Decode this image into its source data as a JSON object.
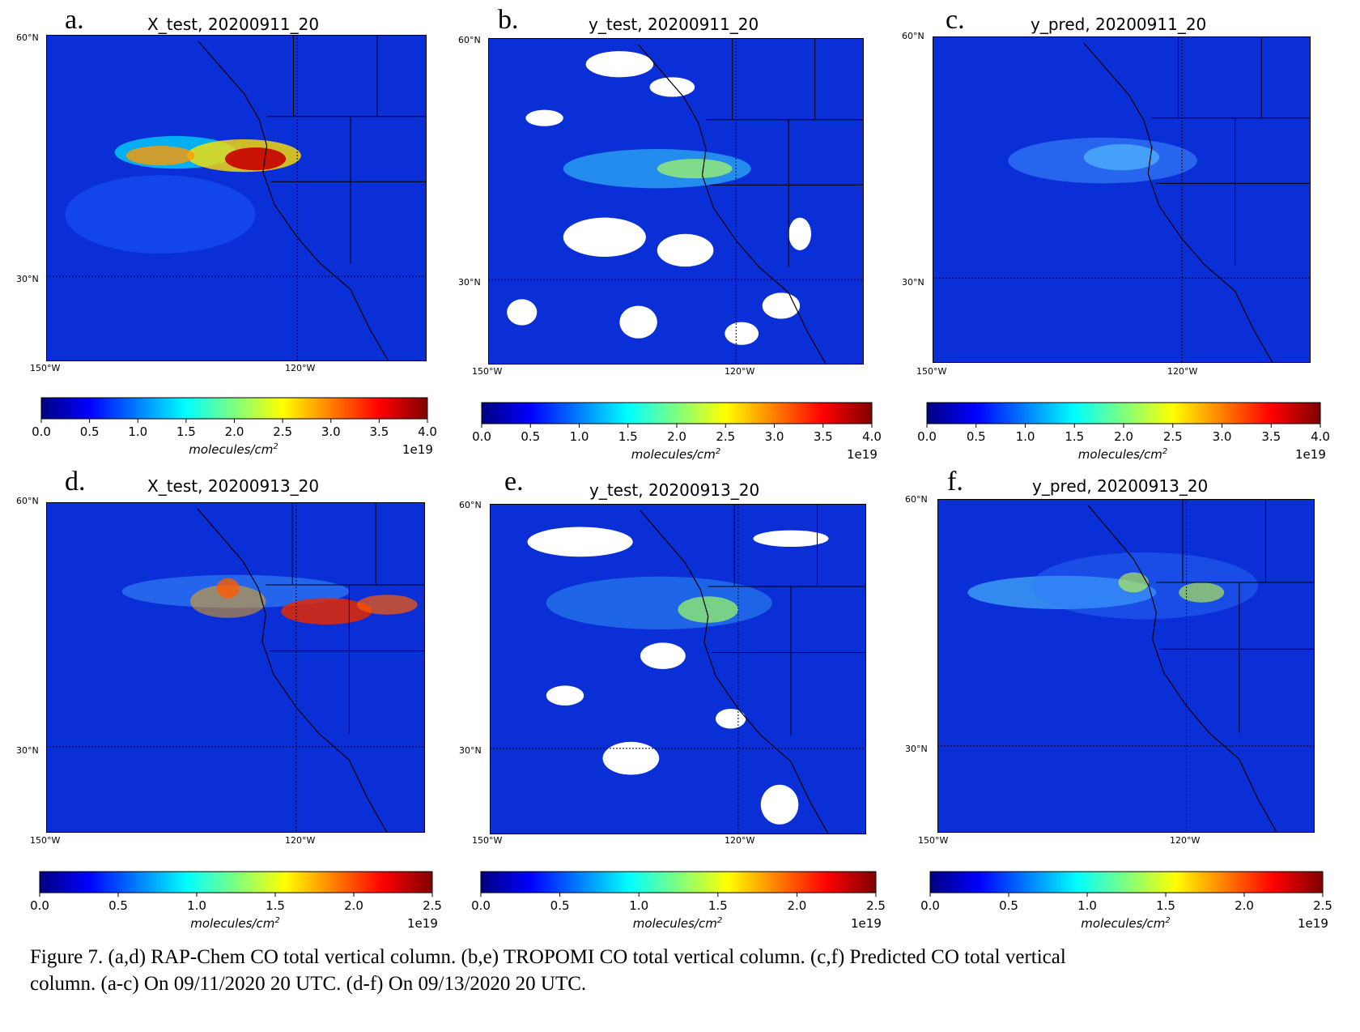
{
  "panels": [
    {
      "letter": "a.",
      "title": "X_test, 20200911_20",
      "lat_top": "60°N",
      "lat_mid": "30°N",
      "lon_left": "150°W",
      "lon_mid": "120°W",
      "field": "xtest1"
    },
    {
      "letter": "b.",
      "title": "y_test, 20200911_20",
      "lat_top": "60°N",
      "lat_mid": "30°N",
      "lon_left": "150°W",
      "lon_mid": "120°W",
      "field": "ytest1"
    },
    {
      "letter": "c.",
      "title": "y_pred, 20200911_20",
      "lat_top": "60°N",
      "lat_mid": "30°N",
      "lon_left": "150°W",
      "lon_mid": "120°W",
      "field": "ypred1"
    },
    {
      "letter": "d.",
      "title": "X_test, 20200913_20",
      "lat_top": "60°N",
      "lat_mid": "30°N",
      "lon_left": "150°W",
      "lon_mid": "120°W",
      "field": "xtest2"
    },
    {
      "letter": "e.",
      "title": "y_test, 20200913_20",
      "lat_top": "60°N",
      "lat_mid": "30°N",
      "lon_left": "150°W",
      "lon_mid": "120°W",
      "field": "ytest2"
    },
    {
      "letter": "f.",
      "title": "y_pred, 20200913_20",
      "lat_top": "60°N",
      "lat_mid": "30°N",
      "lon_left": "150°W",
      "lon_mid": "120°W",
      "field": "ypred2"
    }
  ],
  "colorbars": [
    {
      "ticks": [
        "0.0",
        "0.5",
        "1.0",
        "1.5",
        "2.0",
        "2.5",
        "3.0",
        "3.5",
        "4.0"
      ],
      "label": "molecules/cm",
      "label_sup": "2",
      "exponent": "1e19"
    },
    {
      "ticks": [
        "0.0",
        "0.5",
        "1.0",
        "1.5",
        "2.0",
        "2.5",
        "3.0",
        "3.5",
        "4.0"
      ],
      "label": "molecules/cm",
      "label_sup": "2",
      "exponent": "1e19"
    },
    {
      "ticks": [
        "0.0",
        "0.5",
        "1.0",
        "1.5",
        "2.0",
        "2.5",
        "3.0",
        "3.5",
        "4.0"
      ],
      "label": "molecules/cm",
      "label_sup": "2",
      "exponent": "1e19"
    },
    {
      "ticks": [
        "0.0",
        "0.5",
        "1.0",
        "1.5",
        "2.0",
        "2.5"
      ],
      "label": "molecules/cm",
      "label_sup": "2",
      "exponent": "1e19"
    },
    {
      "ticks": [
        "0.0",
        "0.5",
        "1.0",
        "1.5",
        "2.0",
        "2.5"
      ],
      "label": "molecules/cm",
      "label_sup": "2",
      "exponent": "1e19"
    },
    {
      "ticks": [
        "0.0",
        "0.5",
        "1.0",
        "1.5",
        "2.0",
        "2.5"
      ],
      "label": "molecules/cm",
      "label_sup": "2",
      "exponent": "1e19"
    }
  ],
  "caption": {
    "line1": "Figure 7. (a,d) RAP-Chem CO total vertical column. (b,e) TROPOMI CO total vertical column. (c,f) Predicted CO total vertical",
    "line2": "column. (a-c) On 09/11/2020 20 UTC. (d-f) On 09/13/2020 20 UTC."
  },
  "colors": {
    "jet": [
      "#00007f",
      "#0000ff",
      "#007fff",
      "#00ffff",
      "#7fff7f",
      "#ffff00",
      "#ff7f00",
      "#ff0000",
      "#7f0000"
    ],
    "background_field": "#0b2fd6"
  }
}
